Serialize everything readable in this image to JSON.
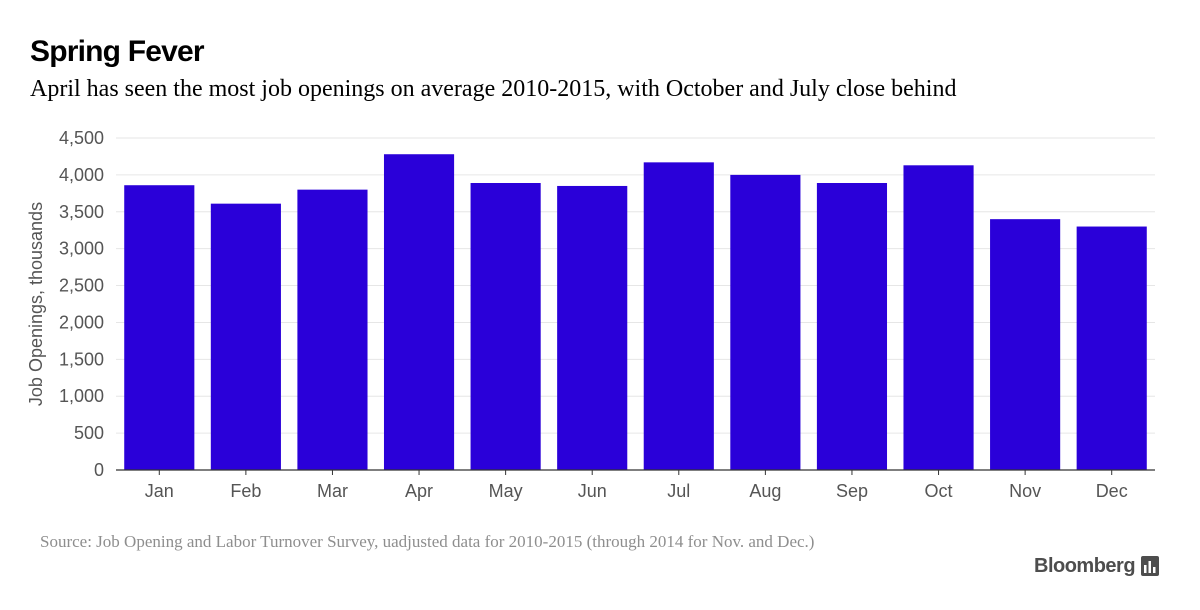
{
  "header": {
    "title": "Spring Fever",
    "subtitle": "April has seen the most job openings on average 2010-2015, with October and July close behind"
  },
  "footer": {
    "source": "Source: Job Opening and Labor Turnover Survey, uadjusted data for 2010-2015 (through 2014 for Nov. and Dec.)",
    "brand": "Bloomberg",
    "brand_icon": "bloomberg-chart-icon"
  },
  "colors": {
    "bar": "#2a00d9",
    "grid": "#e6e6e6",
    "axis_text": "#555555",
    "source_text": "#8e8e8e"
  },
  "chart_data": {
    "type": "bar",
    "title": "Spring Fever",
    "subtitle": "April has seen the most job openings on average 2010-2015, with October and July close behind",
    "xlabel": "",
    "ylabel": "Job Openings, thousands",
    "categories": [
      "Jan",
      "Feb",
      "Mar",
      "Apr",
      "May",
      "Jun",
      "Jul",
      "Aug",
      "Sep",
      "Oct",
      "Nov",
      "Dec"
    ],
    "values": [
      3860,
      3610,
      3800,
      4280,
      3890,
      3850,
      4170,
      4000,
      3890,
      4130,
      3400,
      3300
    ],
    "ylim": [
      0,
      4500
    ],
    "yticks": [
      0,
      500,
      1000,
      1500,
      2000,
      2500,
      3000,
      3500,
      4000,
      4500
    ],
    "ytick_labels": [
      "0",
      "500",
      "1,000",
      "1,500",
      "2,000",
      "2,500",
      "3,000",
      "3,500",
      "4,000",
      "4,500"
    ],
    "grid": true,
    "legend": "none"
  }
}
